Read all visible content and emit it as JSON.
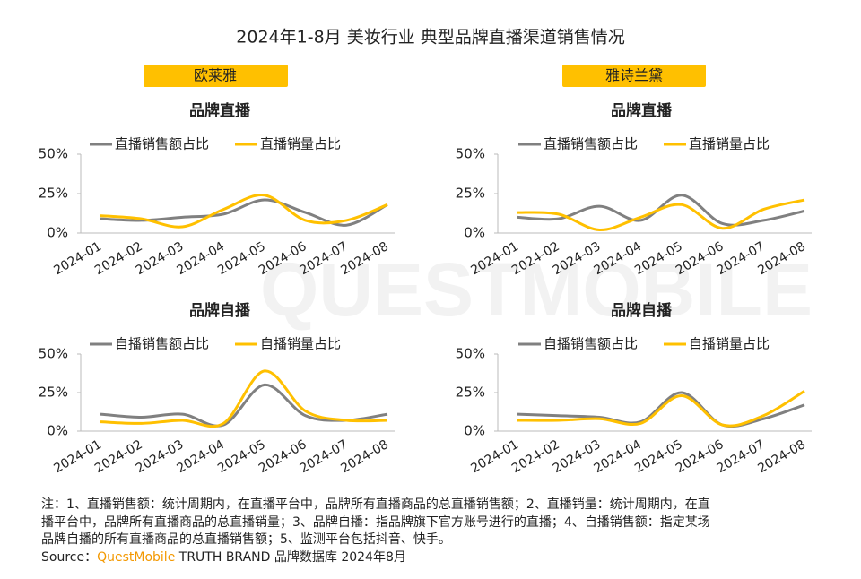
{
  "page": {
    "title": "2024年1-8月 美妆行业 典型品牌直播渠道销售情况",
    "brands": [
      "欧莱雅",
      "雅诗兰黛"
    ],
    "watermark": "QUESTMOBILE",
    "note": [
      "注：1、直播销售额：统计周期内，在直播平台中，品牌所有直播商品的总直播销售额；2、直播销量：统计周期内，在直",
      "播平台中，品牌所有直播商品的总直播销量；3、品牌自播：指品牌旗下官方账号进行的直播；4、自播销售额：指定某场",
      "品牌自播的所有直播商品的总直播销售额；5、监测平台包括抖音、快手。"
    ],
    "source": [
      "Source：",
      "QuestMobile",
      " TRUTH BRAND 品牌数据库 2024年8月"
    ]
  },
  "chart_data": [
    {
      "type": "line",
      "title": "品牌直播",
      "categories": [
        "2024-01",
        "2024-02",
        "2024-03",
        "2024-04",
        "2024-05",
        "2024-06",
        "2024-07",
        "2024-08"
      ],
      "series": [
        {
          "name": "直播销售额占比",
          "color": "#808080",
          "values": [
            9,
            8,
            10,
            12,
            21,
            13,
            5,
            18
          ]
        },
        {
          "name": "直播销量占比",
          "color": "#FFC000",
          "values": [
            11,
            9,
            4,
            15,
            24,
            8,
            8,
            18
          ]
        }
      ],
      "ylim": [
        0,
        50
      ],
      "yticks": [
        {
          "value": 0,
          "label": "0%"
        },
        {
          "value": 25,
          "label": "25%"
        },
        {
          "value": 50,
          "label": "50%"
        }
      ]
    },
    {
      "type": "line",
      "title": "品牌直播",
      "categories": [
        "2024-01",
        "2024-02",
        "2024-03",
        "2024-04",
        "2024-05",
        "2024-06",
        "2024-07",
        "2024-08"
      ],
      "series": [
        {
          "name": "直播销售额占比",
          "color": "#808080",
          "values": [
            10,
            9,
            17,
            8,
            24,
            6,
            8,
            14
          ]
        },
        {
          "name": "直播销量占比",
          "color": "#FFC000",
          "values": [
            13,
            12,
            2,
            10,
            18,
            3,
            15,
            21
          ]
        }
      ],
      "ylim": [
        0,
        50
      ],
      "yticks": [
        {
          "value": 0,
          "label": "0%"
        },
        {
          "value": 25,
          "label": "25%"
        },
        {
          "value": 50,
          "label": "50%"
        }
      ]
    },
    {
      "type": "line",
      "title": "品牌自播",
      "categories": [
        "2024-01",
        "2024-02",
        "2024-03",
        "2024-04",
        "2024-05",
        "2024-06",
        "2024-07",
        "2024-08"
      ],
      "series": [
        {
          "name": "自播销售额占比",
          "color": "#808080",
          "values": [
            11,
            9,
            11,
            4,
            30,
            10,
            7,
            11
          ]
        },
        {
          "name": "自播销量占比",
          "color": "#FFC000",
          "values": [
            6,
            5,
            7,
            5,
            39,
            13,
            7,
            7
          ]
        }
      ],
      "ylim": [
        0,
        50
      ],
      "yticks": [
        {
          "value": 0,
          "label": "0%"
        },
        {
          "value": 25,
          "label": "25%"
        },
        {
          "value": 50,
          "label": "50%"
        }
      ]
    },
    {
      "type": "line",
      "title": "品牌自播",
      "categories": [
        "2024-01",
        "2024-02",
        "2024-03",
        "2024-04",
        "2024-05",
        "2024-06",
        "2024-07",
        "2024-08"
      ],
      "series": [
        {
          "name": "自播销售额占比",
          "color": "#808080",
          "values": [
            11,
            10,
            9,
            6,
            25,
            4,
            8,
            17
          ]
        },
        {
          "name": "自播销量占比",
          "color": "#FFC000",
          "values": [
            7,
            7,
            8,
            5,
            23,
            4,
            10,
            26
          ]
        }
      ],
      "ylim": [
        0,
        50
      ],
      "yticks": [
        {
          "value": 0,
          "label": "0%"
        },
        {
          "value": 25,
          "label": "25%"
        },
        {
          "value": 50,
          "label": "50%"
        }
      ]
    }
  ]
}
